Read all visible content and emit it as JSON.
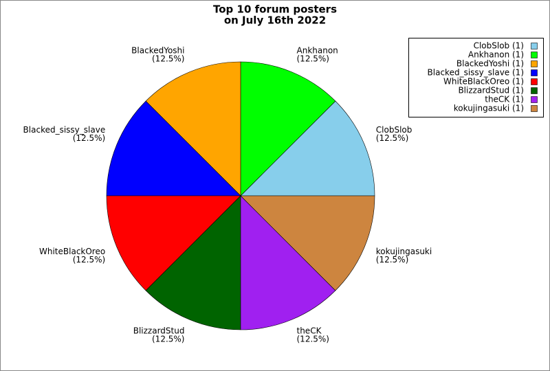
{
  "chart_data": {
    "type": "pie",
    "title": [
      "Top 10 forum posters",
      "on July 16th 2022"
    ],
    "categories": [
      "ClobSlob",
      "Ankhanon",
      "BlackedYoshi",
      "Blacked_sissy_slave",
      "WhiteBlackOreo",
      "BlizzardStud",
      "theCK",
      "kokujingasuki"
    ],
    "values": [
      12.5,
      12.5,
      12.5,
      12.5,
      12.5,
      12.5,
      12.5,
      12.5
    ],
    "value_labels": [
      "(12.5%)",
      "(12.5%)",
      "(12.5%)",
      "(12.5%)",
      "(12.5%)",
      "(12.5%)",
      "(12.5%)",
      "(12.5%)"
    ],
    "legend_labels": [
      "ClobSlob (1)",
      "Ankhanon (1)",
      "BlackedYoshi (1)",
      "Blacked_sissy_slave (1)",
      "WhiteBlackOreo (1)",
      "BlizzardStud (1)",
      "theCK (1)",
      "kokujingasuki (1)"
    ],
    "colors": [
      "#87ceeb",
      "#00ff00",
      "#ffa500",
      "#0000ff",
      "#ff0000",
      "#006400",
      "#a020f0",
      "#cd853f"
    ],
    "legend_position": "upper right"
  }
}
